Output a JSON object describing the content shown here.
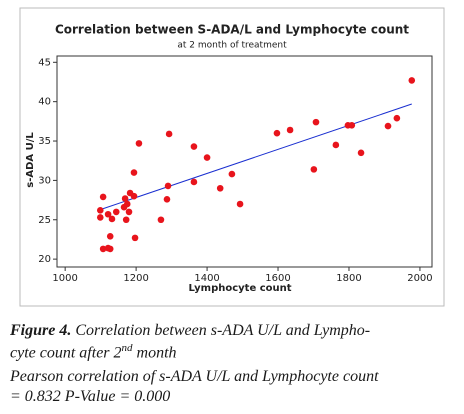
{
  "chart_data": {
    "type": "scatter",
    "title": "Correlation between S-ADA/L and Lymphocyte count",
    "subtitle": "at 2 month of treatment",
    "x_label": "Lymphocyte count",
    "y_label": "s-ADA U/L",
    "color": "#e8141c",
    "fit_color": "#1a2fd0",
    "x": [
      1099,
      1099,
      1107,
      1107,
      1121,
      1121,
      1127,
      1127,
      1132,
      1144,
      1166,
      1169,
      1172,
      1175,
      1180,
      1183,
      1194,
      1194,
      1197,
      1208,
      1270,
      1287,
      1290,
      1293,
      1363,
      1363,
      1400,
      1437,
      1470,
      1493,
      1597,
      1634,
      1701,
      1707,
      1763,
      1797,
      1808,
      1834,
      1910,
      1935,
      1977
    ],
    "values": [
      26.2,
      25.3,
      27.9,
      21.3,
      25.7,
      21.4,
      22.9,
      21.3,
      25.1,
      26.0,
      26.6,
      27.7,
      25.0,
      27.0,
      26.0,
      28.4,
      31.0,
      28.0,
      22.7,
      34.7,
      25.0,
      27.6,
      29.3,
      35.9,
      29.8,
      34.3,
      32.9,
      29.0,
      30.8,
      27.0,
      36.0,
      36.4,
      31.4,
      37.4,
      34.5,
      37.0,
      37.0,
      33.5,
      36.9,
      37.9,
      42.7
    ],
    "fit_line": {
      "x": [
        1100,
        1977
      ],
      "y": [
        26.3,
        39.7
      ]
    },
    "xlim": [
      977,
      2034
    ],
    "ylim": [
      19,
      45.8
    ],
    "xticks": [
      1000,
      1200,
      1400,
      1600,
      1800,
      2000
    ],
    "yticks": [
      20,
      25,
      30,
      35,
      40,
      45
    ]
  },
  "caption": {
    "label": "Figure 4.",
    "line1": "Correlation between s-ADA U/L and Lympho-",
    "line2": "cyte count after 2",
    "superscript": "nd",
    "line2_end": " month",
    "line3": "Pearson correlation of s-ADA U/L and Lymphocyte count",
    "line4": "= 0.832 P-Value = 0.000"
  }
}
